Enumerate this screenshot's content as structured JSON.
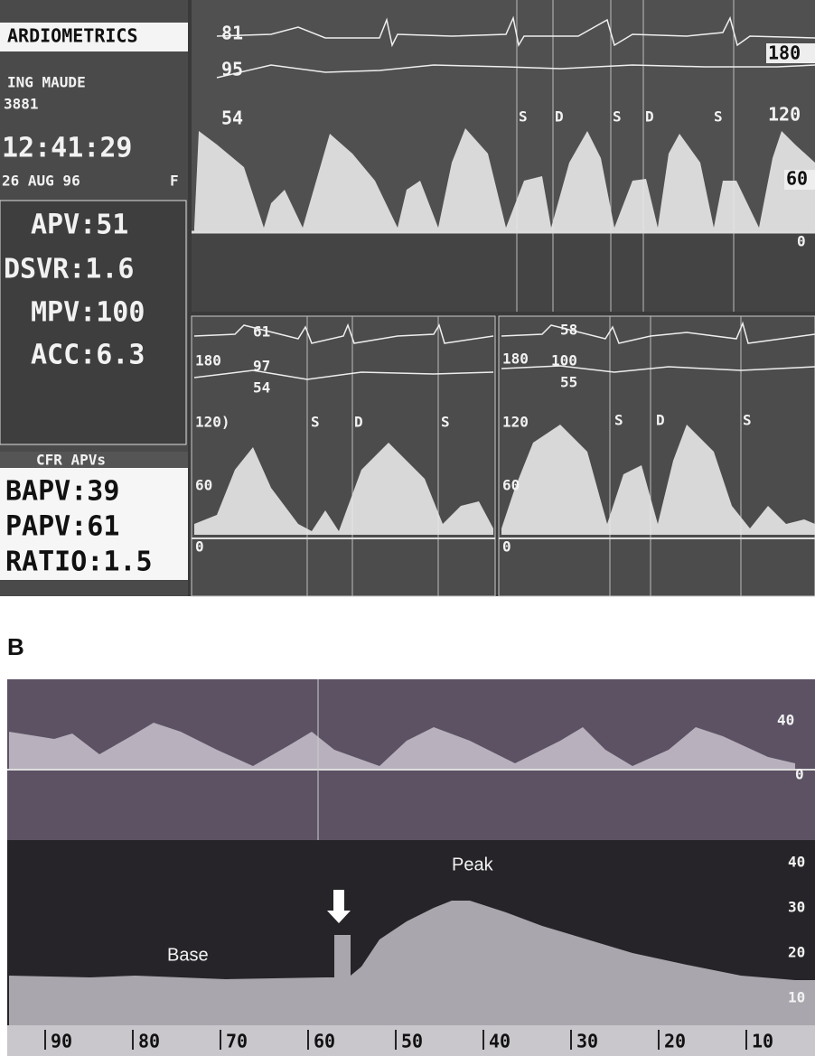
{
  "header": {
    "brand": "ARDIOMETRICS",
    "patient": "ING MAUDE",
    "id": "3881",
    "time": "12:41:29",
    "date": "26 AUG 96",
    "sex": "F"
  },
  "measurements": [
    "APV:51",
    "DSVR:1.6",
    "MPV:100",
    "ACC:6.3"
  ],
  "cfr": {
    "title": "CFR APVs",
    "rows": [
      "BAPV:39",
      "PAPV:61",
      "RATIO:1.5"
    ]
  },
  "top_trace": {
    "ecg_labels": [
      "81",
      "95",
      "54"
    ],
    "scale": [
      "180",
      "120",
      "60",
      "0"
    ],
    "phases": [
      "S",
      "D",
      "S",
      "D",
      "S"
    ]
  },
  "base_panel": {
    "vitals": [
      "61",
      "97",
      "54"
    ],
    "scale": [
      "180",
      "120)",
      "60",
      "0"
    ],
    "phases": [
      "S",
      "D",
      "S"
    ]
  },
  "peak_panel": {
    "vitals": [
      "58",
      "100",
      "55"
    ],
    "scale": [
      "180",
      "120",
      "60",
      "0"
    ],
    "phases": [
      "S",
      "D",
      "S"
    ]
  },
  "panel_b": {
    "label": "B",
    "peak": "Peak",
    "base": "Base",
    "top_scale": [
      "40",
      "0"
    ],
    "trend_scale": [
      "40",
      "30",
      "20",
      "10"
    ],
    "time_axis": [
      "90",
      "80",
      "70",
      "60",
      "50",
      "40",
      "30",
      "20",
      "10"
    ]
  }
}
